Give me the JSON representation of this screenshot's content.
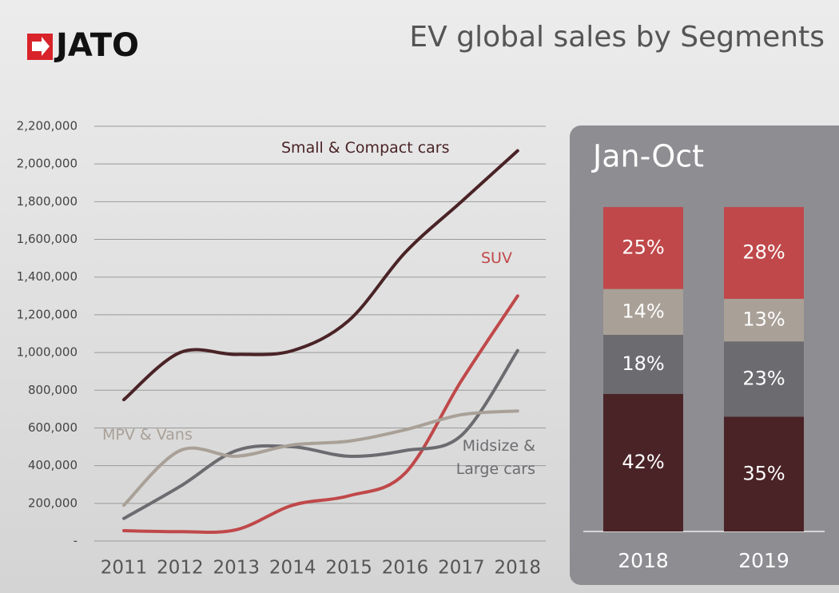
{
  "header": {
    "logo": "JATO"
  },
  "chart_data": [
    {
      "type": "line",
      "title": "EV global sales by Segments",
      "categories": [
        "2011",
        "2012",
        "2013",
        "2014",
        "2015",
        "2016",
        "2017",
        "2018"
      ],
      "series": [
        {
          "name": "Small & Compact cars",
          "color": "#4a2326",
          "values": [
            750000,
            1000000,
            990000,
            1010000,
            1170000,
            1530000,
            1800000,
            2070000
          ]
        },
        {
          "name": "SUV",
          "color": "#c0484a",
          "values": [
            55000,
            50000,
            60000,
            190000,
            240000,
            360000,
            850000,
            1300000
          ]
        },
        {
          "name": "Midsize & Large cars",
          "color": "#6c6b70",
          "values": [
            120000,
            290000,
            480000,
            500000,
            450000,
            480000,
            560000,
            1010000
          ]
        },
        {
          "name": "MPV & Vans",
          "color": "#a9a097",
          "values": [
            190000,
            480000,
            450000,
            510000,
            530000,
            590000,
            670000,
            690000
          ]
        }
      ],
      "ylim": [
        0,
        2200000
      ],
      "yticks": [
        {
          "value": 0,
          "label": "-"
        },
        {
          "value": 200000,
          "label": "200,000"
        },
        {
          "value": 400000,
          "label": "400,000"
        },
        {
          "value": 600000,
          "label": "600,000"
        },
        {
          "value": 800000,
          "label": "800,000"
        },
        {
          "value": 1000000,
          "label": "1,000,000"
        },
        {
          "value": 1200000,
          "label": "1,200,000"
        },
        {
          "value": 1400000,
          "label": "1,400,000"
        },
        {
          "value": 1600000,
          "label": "1,600,000"
        },
        {
          "value": 1800000,
          "label": "1,800,000"
        },
        {
          "value": 2000000,
          "label": "2,000,000"
        },
        {
          "value": 2200000,
          "label": "2,200,000"
        }
      ],
      "grid": true
    },
    {
      "type": "stacked-bar",
      "title": "Jan-Oct",
      "categories": [
        "2018",
        "2019"
      ],
      "series": [
        {
          "color": "#4a2326",
          "values": [
            42,
            35
          ],
          "value_labels": [
            "42%",
            "35%"
          ]
        },
        {
          "color": "#6c6b70",
          "values": [
            18,
            23
          ],
          "value_labels": [
            "18%",
            "23%"
          ]
        },
        {
          "color": "#a9a097",
          "values": [
            14,
            13
          ],
          "value_labels": [
            "14%",
            "13%"
          ]
        },
        {
          "color": "#c0484a",
          "values": [
            25,
            28
          ],
          "value_labels": [
            "25%",
            "28%"
          ]
        }
      ]
    }
  ]
}
